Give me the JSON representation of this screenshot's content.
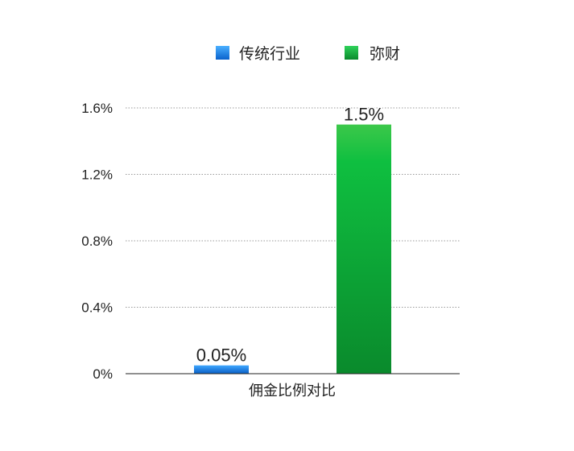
{
  "chart_data": {
    "type": "bar",
    "categories": [
      "佣金比例对比"
    ],
    "series": [
      {
        "name": "传统行业",
        "values": [
          0.05
        ],
        "color": "#1a7fe0",
        "label": "0.05%"
      },
      {
        "name": "弥财",
        "values": [
          1.5
        ],
        "color": "#0fb83e",
        "label": "1.5%"
      }
    ],
    "y_ticks": [
      "0%",
      "0.4%",
      "0.8%",
      "1.2%",
      "1.6%"
    ],
    "y_tick_values": [
      0,
      0.4,
      0.8,
      1.2,
      1.6
    ],
    "ylim": [
      0,
      1.6
    ],
    "unit": "%",
    "grid": true,
    "legend_position": "top-center",
    "title": "",
    "xlabel": "",
    "ylabel": ""
  }
}
